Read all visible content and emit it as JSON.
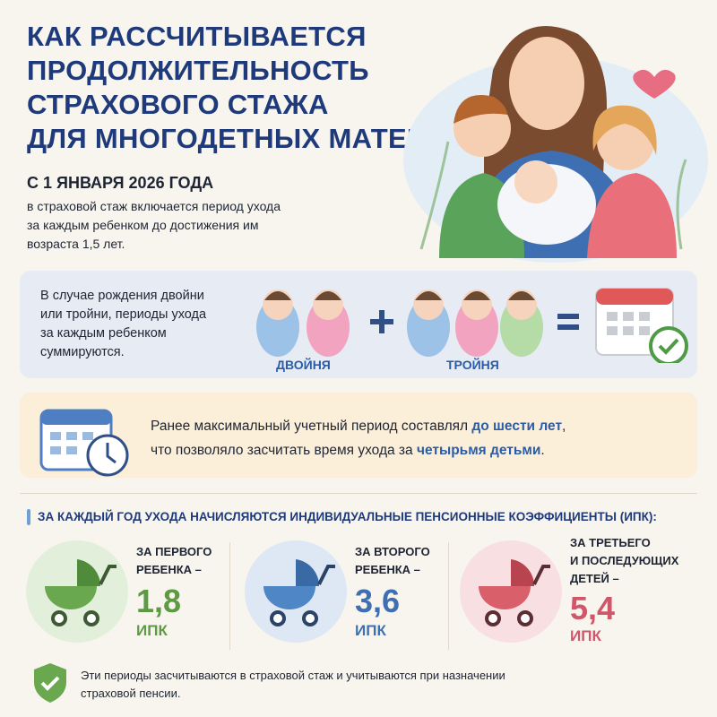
{
  "header": {
    "title_lines": [
      "КАК РАССЧИТЫВАЕТСЯ",
      "ПРОДОЛЖИТЕЛЬНОСТЬ",
      "СТРАХОВОГО СТАЖА",
      "ДЛЯ МНОГОДЕТНЫХ МАТЕРЕЙ?"
    ],
    "date": "С 1 ЯНВАРЯ 2026 ГОДА",
    "intro_lines": [
      "в страховой стаж включается период ухода",
      "за каждым ребенком до достижения им",
      "возраста 1,5 лет."
    ]
  },
  "multiples": {
    "text_lines": [
      "В случае рождения двойни",
      "или тройни, периоды ухода",
      "за каждым ребенком",
      "суммируются."
    ],
    "twins": "ДВОЙНЯ",
    "triplets": "ТРОЙНЯ"
  },
  "previous": {
    "line1": [
      "Ранее максимальный учетный период составлял ",
      "до шести лет",
      ","
    ],
    "line2": [
      "что позволяло засчитать время ухода за ",
      "четырьмя детьми",
      "."
    ]
  },
  "ipk": {
    "heading": "ЗА КАЖДЫЙ ГОД УХОДА НАЧИСЛЯЮТСЯ ИНДИВИДУАЛЬНЫЕ ПЕНСИОННЫЕ КОЭФФИЦИЕНТЫ (ИПК):",
    "items": [
      {
        "label_lines": [
          "ЗА ПЕРВОГО",
          "РЕБЕНКА –"
        ],
        "value": "1,8",
        "unit": "ИПК"
      },
      {
        "label_lines": [
          "ЗА ВТОРОГО",
          "РЕБЕНКА –"
        ],
        "value": "3,6",
        "unit": "ИПК"
      },
      {
        "label_lines": [
          "ЗА ТРЕТЬЕГО",
          "И ПОСЛЕДУЮЩИХ",
          "ДЕТЕЙ –"
        ],
        "value": "5,4",
        "unit": "ИПК"
      }
    ]
  },
  "footer": {
    "lines": [
      "Эти периоды засчитываются в страховой стаж и учитываются при назначении",
      "страховой пенсии."
    ]
  }
}
